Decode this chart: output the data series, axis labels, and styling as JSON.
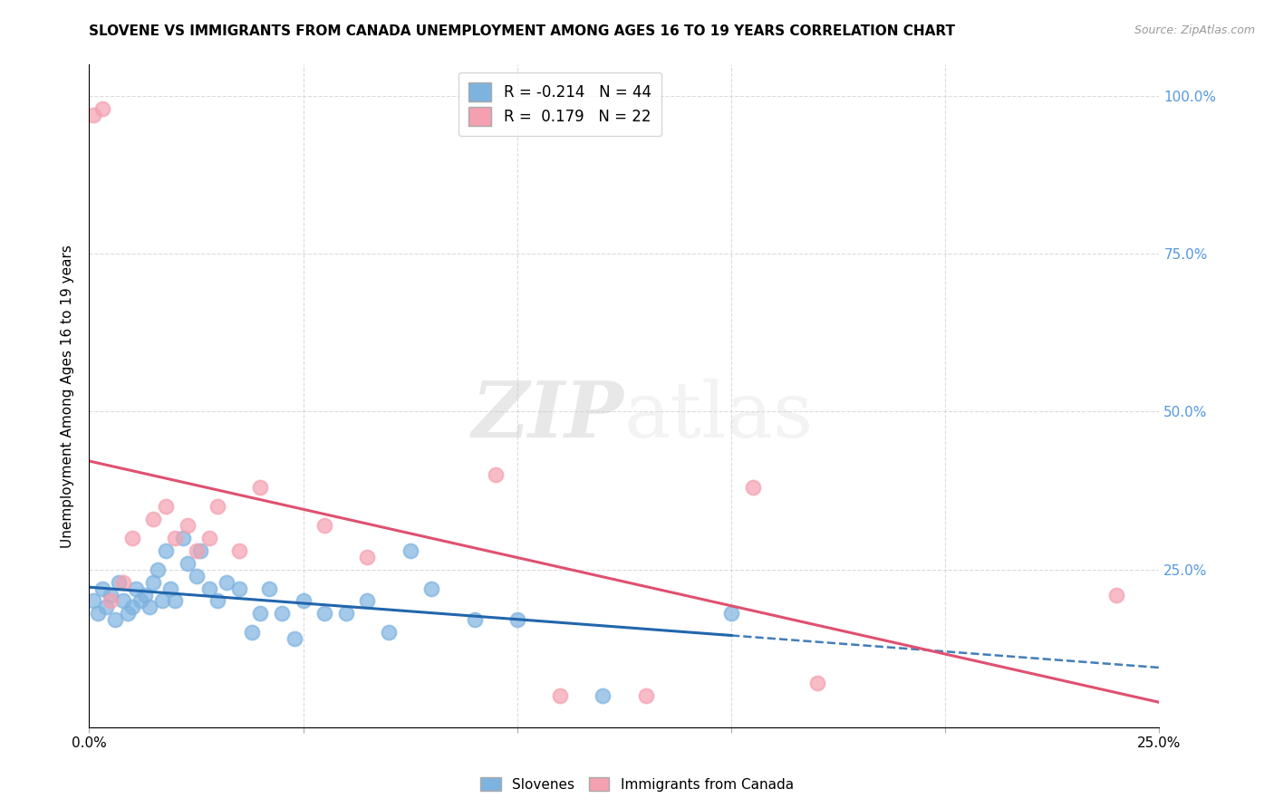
{
  "title": "SLOVENE VS IMMIGRANTS FROM CANADA UNEMPLOYMENT AMONG AGES 16 TO 19 YEARS CORRELATION CHART",
  "source": "Source: ZipAtlas.com",
  "ylabel": "Unemployment Among Ages 16 to 19 years",
  "xlim": [
    0.0,
    0.25
  ],
  "ylim": [
    0.0,
    1.05
  ],
  "slovene_color": "#7EB3E0",
  "canada_color": "#F4A0B0",
  "slovene_line_color": "#2166AC",
  "canada_line_color": "#E05070",
  "slovene_R": -0.214,
  "slovene_N": 44,
  "canada_R": 0.179,
  "canada_N": 22,
  "slovene_x": [
    0.001,
    0.002,
    0.003,
    0.004,
    0.005,
    0.006,
    0.007,
    0.008,
    0.009,
    0.01,
    0.011,
    0.012,
    0.013,
    0.014,
    0.015,
    0.016,
    0.017,
    0.018,
    0.019,
    0.02,
    0.022,
    0.023,
    0.025,
    0.026,
    0.028,
    0.03,
    0.032,
    0.035,
    0.038,
    0.04,
    0.042,
    0.045,
    0.048,
    0.05,
    0.055,
    0.06,
    0.065,
    0.07,
    0.075,
    0.08,
    0.09,
    0.1,
    0.12,
    0.15
  ],
  "slovene_y": [
    0.2,
    0.18,
    0.22,
    0.19,
    0.21,
    0.17,
    0.23,
    0.2,
    0.18,
    0.19,
    0.22,
    0.2,
    0.21,
    0.19,
    0.23,
    0.25,
    0.2,
    0.28,
    0.22,
    0.2,
    0.3,
    0.26,
    0.24,
    0.28,
    0.22,
    0.2,
    0.23,
    0.22,
    0.15,
    0.18,
    0.22,
    0.18,
    0.14,
    0.2,
    0.18,
    0.18,
    0.2,
    0.15,
    0.28,
    0.22,
    0.17,
    0.17,
    0.05,
    0.18
  ],
  "canada_x": [
    0.001,
    0.003,
    0.005,
    0.008,
    0.01,
    0.015,
    0.018,
    0.02,
    0.023,
    0.025,
    0.028,
    0.03,
    0.035,
    0.04,
    0.055,
    0.065,
    0.095,
    0.11,
    0.13,
    0.155,
    0.17,
    0.24
  ],
  "canada_y": [
    0.97,
    0.98,
    0.2,
    0.23,
    0.3,
    0.33,
    0.35,
    0.3,
    0.32,
    0.28,
    0.3,
    0.35,
    0.28,
    0.38,
    0.32,
    0.27,
    0.4,
    0.05,
    0.05,
    0.38,
    0.07,
    0.21
  ],
  "watermark_zip": "ZIP",
  "watermark_atlas": "atlas",
  "background_color": "#FFFFFF",
  "grid_color": "#CCCCCC"
}
